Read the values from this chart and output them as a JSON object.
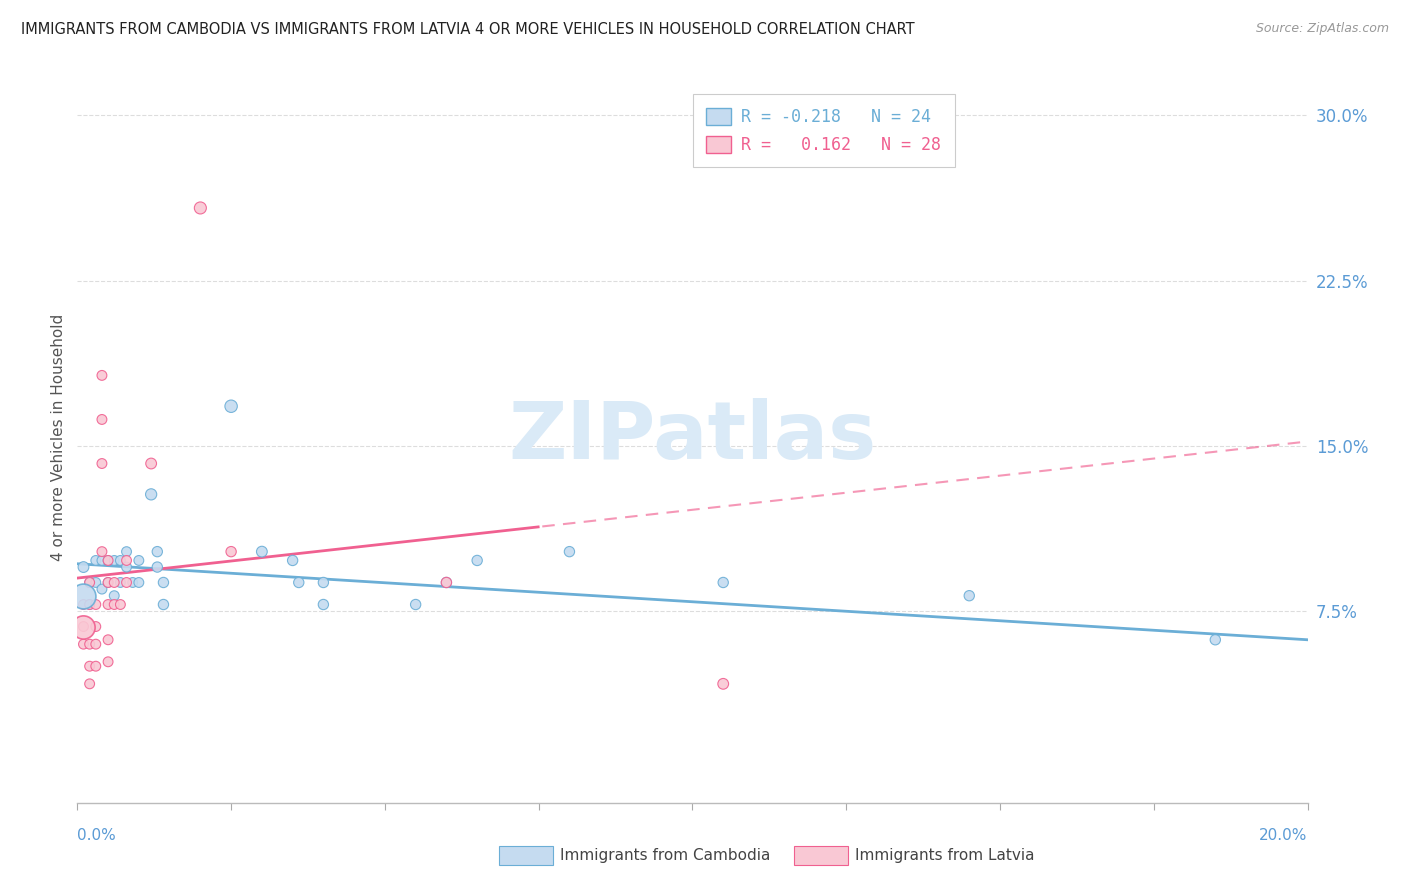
{
  "title": "IMMIGRANTS FROM CAMBODIA VS IMMIGRANTS FROM LATVIA 4 OR MORE VEHICLES IN HOUSEHOLD CORRELATION CHART",
  "source": "Source: ZipAtlas.com",
  "ylabel": "4 or more Vehicles in Household",
  "ytick_labels": [
    "7.5%",
    "15.0%",
    "22.5%",
    "30.0%"
  ],
  "ytick_values": [
    0.075,
    0.15,
    0.225,
    0.3
  ],
  "xlim": [
    0.0,
    0.2
  ],
  "ylim": [
    -0.012,
    0.32
  ],
  "legend1_r": "-0.218",
  "legend1_n": "24",
  "legend2_r": "0.162",
  "legend2_n": "28",
  "color_cambodia": "#c5dbf0",
  "color_latvia": "#f9c8d4",
  "line_color_cambodia": "#6baed6",
  "line_color_latvia": "#f06090",
  "watermark_color": "#daeaf7",
  "cambodia_points": [
    [
      0.001,
      0.095
    ],
    [
      0.002,
      0.088
    ],
    [
      0.002,
      0.078
    ],
    [
      0.003,
      0.098
    ],
    [
      0.003,
      0.088
    ],
    [
      0.004,
      0.098
    ],
    [
      0.004,
      0.085
    ],
    [
      0.005,
      0.098
    ],
    [
      0.005,
      0.088
    ],
    [
      0.006,
      0.098
    ],
    [
      0.006,
      0.082
    ],
    [
      0.007,
      0.098
    ],
    [
      0.007,
      0.088
    ],
    [
      0.008,
      0.102
    ],
    [
      0.008,
      0.095
    ],
    [
      0.009,
      0.088
    ],
    [
      0.01,
      0.098
    ],
    [
      0.01,
      0.088
    ],
    [
      0.012,
      0.128
    ],
    [
      0.013,
      0.102
    ],
    [
      0.013,
      0.095
    ],
    [
      0.014,
      0.088
    ],
    [
      0.014,
      0.078
    ],
    [
      0.025,
      0.168
    ],
    [
      0.03,
      0.102
    ],
    [
      0.035,
      0.098
    ],
    [
      0.036,
      0.088
    ],
    [
      0.04,
      0.088
    ],
    [
      0.04,
      0.078
    ],
    [
      0.055,
      0.078
    ],
    [
      0.06,
      0.088
    ],
    [
      0.065,
      0.098
    ],
    [
      0.08,
      0.102
    ],
    [
      0.105,
      0.088
    ],
    [
      0.145,
      0.082
    ],
    [
      0.185,
      0.062
    ]
  ],
  "cambodia_sizes": [
    60,
    50,
    50,
    50,
    50,
    50,
    50,
    50,
    50,
    50,
    50,
    50,
    50,
    50,
    50,
    50,
    50,
    50,
    65,
    55,
    55,
    55,
    55,
    80,
    60,
    55,
    55,
    55,
    55,
    55,
    55,
    55,
    55,
    55,
    55,
    55
  ],
  "cambodia_big": [
    0.001,
    0.082
  ],
  "cambodia_big_size": 320,
  "latvia_points": [
    [
      0.001,
      0.078
    ],
    [
      0.001,
      0.068
    ],
    [
      0.001,
      0.06
    ],
    [
      0.002,
      0.088
    ],
    [
      0.002,
      0.078
    ],
    [
      0.002,
      0.06
    ],
    [
      0.002,
      0.05
    ],
    [
      0.002,
      0.042
    ],
    [
      0.003,
      0.078
    ],
    [
      0.003,
      0.068
    ],
    [
      0.003,
      0.06
    ],
    [
      0.003,
      0.05
    ],
    [
      0.004,
      0.182
    ],
    [
      0.004,
      0.162
    ],
    [
      0.004,
      0.142
    ],
    [
      0.004,
      0.102
    ],
    [
      0.005,
      0.098
    ],
    [
      0.005,
      0.088
    ],
    [
      0.005,
      0.078
    ],
    [
      0.005,
      0.062
    ],
    [
      0.005,
      0.052
    ],
    [
      0.006,
      0.088
    ],
    [
      0.006,
      0.078
    ],
    [
      0.007,
      0.078
    ],
    [
      0.008,
      0.098
    ],
    [
      0.008,
      0.088
    ],
    [
      0.012,
      0.142
    ],
    [
      0.02,
      0.258
    ],
    [
      0.025,
      0.102
    ],
    [
      0.06,
      0.088
    ],
    [
      0.105,
      0.042
    ]
  ],
  "latvia_sizes": [
    50,
    50,
    50,
    50,
    50,
    50,
    50,
    50,
    50,
    50,
    50,
    50,
    50,
    50,
    50,
    50,
    50,
    50,
    50,
    50,
    50,
    50,
    50,
    50,
    50,
    50,
    60,
    75,
    55,
    55,
    60
  ],
  "latvia_big": [
    0.001,
    0.068
  ],
  "latvia_big_size": 280,
  "cam_line_x0": 0.0,
  "cam_line_y0": 0.0965,
  "cam_line_x1": 0.2,
  "cam_line_y1": 0.062,
  "lat_line_x0": 0.0,
  "lat_line_y0": 0.09,
  "lat_line_x1": 0.2,
  "lat_line_y1": 0.152,
  "lat_solid_until": 0.075,
  "lat_dashed_from": 0.075
}
